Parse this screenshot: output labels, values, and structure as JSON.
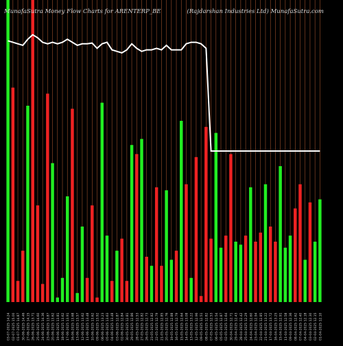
{
  "header": {
    "title_left": "MunafaSutra  Money Flow  Charts for ARENTERP_BE",
    "title_right": "(Rajdarshan  Industries Ltd) MunafaSutra.com"
  },
  "colors": {
    "background": "#000000",
    "up_bar": "#22ee22",
    "down_bar": "#ee2222",
    "price_line": "#ffffff",
    "grid_line": "#a0522d",
    "tick_text": "#cfcfcf"
  },
  "chart_data": {
    "type": "bar",
    "title": "",
    "xlabel": "",
    "ylabel": "",
    "y_axis": "none",
    "grid": "vertical",
    "legend": "none",
    "bar_scale_max": 100,
    "line_scale_max": 100,
    "categories": [
      "03-07-2025 14.24",
      "02-07-2025 15.00",
      "01-07-2025 14.87",
      "30-06-2025 14.46",
      "27-06-2025 14.15",
      "26-06-2025 13.71",
      "25-06-2025 14.60",
      "24-06-2025 14.36",
      "23-06-2025 13.87",
      "20-06-2025 13.62",
      "19-06-2025 13.81",
      "18-06-2025 13.62",
      "17-06-2025 13.91",
      "16-06-2025 13.68",
      "13-06-2025 13.57",
      "12-06-2025 13.62",
      "11-06-2025 13.48",
      "10-06-2025 13.62",
      "09-06-2025 13.92",
      "06-06-2025 13.23",
      "05-06-2025 13.63",
      "04-06-2025 13.48",
      "03-06-2025 12.87",
      "02-06-2025 12.84",
      "30-05-2025 12.81",
      "29-05-2025 12.86",
      "28-05-2025 12.53",
      "27-05-2025 12.82",
      "26-05-2025 12.73",
      "23-05-2025 12.82",
      "22-05-2025 12.79",
      "21-05-2025 12.85",
      "20-05-2025 12.76",
      "19-05-2025 12.88",
      "16-05-2025 12.79",
      "15-05-2025 12.64",
      "14-05-2025 13.08",
      "13-05-2025 13.22",
      "12-05-2025 12.96",
      "09-05-2025 12.51",
      "08-05-2025 12.82",
      "07-05-2025 12.53",
      "06-05-2025 12.54",
      "05-05-2025 12.87",
      "02-05-2025 12.64",
      "30-04-2025 12.71",
      "29-04-2025 12.43",
      "28-04-2025 12.42",
      "25-04-2025 12.29",
      "24-04-2025 12.60",
      "23-04-2025 12.94",
      "22-04-2025 12.85",
      "21-04-2025 13.22",
      "17-04-2025 13.72",
      "16-04-2025 13.25",
      "15-04-2025 12.91",
      "11-04-2025 12.58",
      "09-04-2025 12.36",
      "08-04-2025 12.62",
      "07-04-2025 12.40",
      "04-04-2025 12.18",
      "03-04-2025 12.30",
      "02-04-2025 12.15",
      "01-04-2025 12.10"
    ],
    "tick_labels": [
      "03-07-2025 14.24",
      "02-07-2025 15.00",
      "01-07-2025 14.87",
      "30-06-2025 14.46",
      "27-06-2025 14.15",
      "26-06-2025 13.71",
      "25-06-2025 14.60",
      "24-06-2025 14.36",
      "23-06-2025 13.87",
      "20-06-2025 13.62",
      "19-06-2025 13.81",
      "18-06-2025 13.62",
      "17-06-2025 13.91",
      "16-06-2025 13.68",
      "13-06-2025 13.57",
      "12-06-2025 13.62",
      "11-06-2025 13.48",
      "10-06-2025 13.62",
      "09-06-2025 13.92",
      "06-06-2025 13.23",
      "05-06-2025 13.63",
      "04-06-2025 13.48",
      "03-06-2025 12.87",
      "02-06-2025 12.84",
      "30-05-2025 12.81",
      "29-05-2025 12.86",
      "28-05-2025 12.53",
      "27-05-2025 12.82",
      "26-05-2025 12.73",
      "23-05-2025 12.82",
      "22-05-2025 12.79",
      "21-05-2025 12.85",
      "20-05-2025 12.76",
      "19-05-2025 12.88",
      "16-05-2025 12.79",
      "15-05-2025 12.64",
      "14-05-2025 13.08",
      "13-05-2025 13.22",
      "12-05-2025 12.96",
      "09-05-2025 12.51",
      "08-05-2025 12.82",
      "07-05-2025 12.53",
      "06-05-2025 12.54",
      "05-05-2025 12.87",
      "02-05-2025 12.64",
      "30-04-2025 12.71",
      "29-04-2025 12.43",
      "28-04-2025 12.42",
      "25-04-2025 12.29",
      "24-04-2025 12.60",
      "23-04-2025 12.94",
      "22-04-2025 12.85",
      "21-04-2025 13.22",
      "17-04-2025 13.72",
      "16-04-2025 13.25",
      "15-04-2025 12.91",
      "11-04-2025 12.58",
      "09-04-2025 12.36",
      "08-04-2025 12.62",
      "07-04-2025 12.40",
      "04-04-2025 12.18",
      "03-04-2025 12.30",
      "02-04-2025 12.15",
      "01-04-2025 12.10"
    ],
    "series": [
      {
        "type": "bar",
        "direction": [
          "up",
          "down",
          "down",
          "down",
          "up",
          "down",
          "down",
          "down",
          "down",
          "up",
          "up",
          "up",
          "up",
          "down",
          "up",
          "up",
          "down",
          "down",
          "down",
          "up",
          "up",
          "down",
          "up",
          "down",
          "down",
          "up",
          "down",
          "up",
          "down",
          "up",
          "down",
          "down",
          "up",
          "up",
          "down",
          "up",
          "down",
          "up",
          "down",
          "down",
          "down",
          "down",
          "up",
          "up",
          "down",
          "down",
          "up",
          "up",
          "down",
          "up",
          "down",
          "down",
          "up",
          "down",
          "down",
          "up",
          "up",
          "up",
          "down",
          "down",
          "up",
          "down",
          "up",
          "up"
        ],
        "values": [
          100,
          71,
          7,
          17,
          65,
          100,
          32,
          6,
          69,
          46,
          1.5,
          8,
          35,
          64,
          3,
          25,
          8,
          32,
          1.5,
          66,
          22,
          7,
          17,
          21,
          7,
          52,
          49,
          54,
          15,
          12,
          38,
          12,
          37,
          14,
          17,
          60,
          39,
          8,
          48,
          2,
          58,
          21,
          56,
          18,
          22,
          49,
          20,
          19,
          22,
          38,
          20,
          23,
          39,
          25,
          20,
          45,
          18,
          22,
          31,
          39,
          14,
          33,
          20,
          34
        ]
      },
      {
        "type": "line",
        "values": [
          73,
          72,
          71,
          70,
          74,
          77,
          75,
          72,
          71,
          72,
          71,
          72,
          74,
          72,
          70,
          71,
          71,
          71.5,
          68,
          71,
          72,
          67,
          66,
          65,
          67,
          71,
          68,
          66,
          67,
          67,
          68,
          67,
          70,
          67,
          67,
          67,
          71,
          72,
          72,
          71,
          68,
          0,
          0,
          0,
          0,
          0,
          0,
          0,
          0,
          0,
          0,
          0,
          0,
          0,
          0,
          0,
          0,
          0,
          0,
          0,
          0,
          0,
          0,
          0
        ]
      }
    ]
  }
}
